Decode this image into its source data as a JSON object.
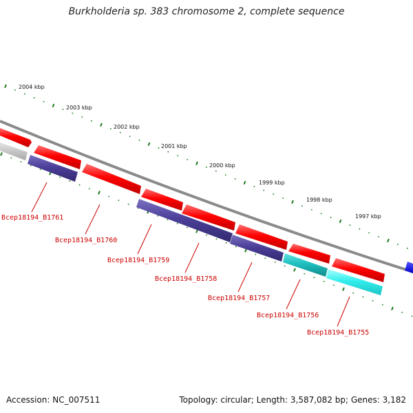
{
  "title": "Burkholderia sp. 383 chromosome 2, complete sequence",
  "ruler_ticks": [
    "2004 kbp",
    "2003 kbp",
    "2002 kbp",
    "2001 kbp",
    "2000 kbp",
    "1999 kbp",
    "1998 kbp",
    "1997 kbp"
  ],
  "genes": [
    {
      "label": "Bcep18194_B1761",
      "color": "#4b3f99"
    },
    {
      "label": "Bcep18194_B1760",
      "color": "#4b3f99"
    },
    {
      "label": "Bcep18194_B1759",
      "color": "#4b3f99"
    },
    {
      "label": "Bcep18194_B1758",
      "color": "#4b3f99"
    },
    {
      "label": "Bcep18194_B1757",
      "color": "#4b3f99"
    },
    {
      "label": "Bcep18194_B1756",
      "color": "#1fbfbf"
    },
    {
      "label": "Bcep18194_B1755",
      "color": "#33eeee"
    }
  ],
  "colors": {
    "forward_strand": "#ff0000",
    "reverse_strand": "#4b3f99",
    "backbone": "#8a8a8a",
    "tick": "#1e7a1e",
    "label": "#cc0000",
    "edge_blue": "#0000ee"
  },
  "footer": {
    "accession": "Accession: NC_007511",
    "summary": "Topology: circular; Length: 3,587,082 bp; Genes: 3,182"
  }
}
